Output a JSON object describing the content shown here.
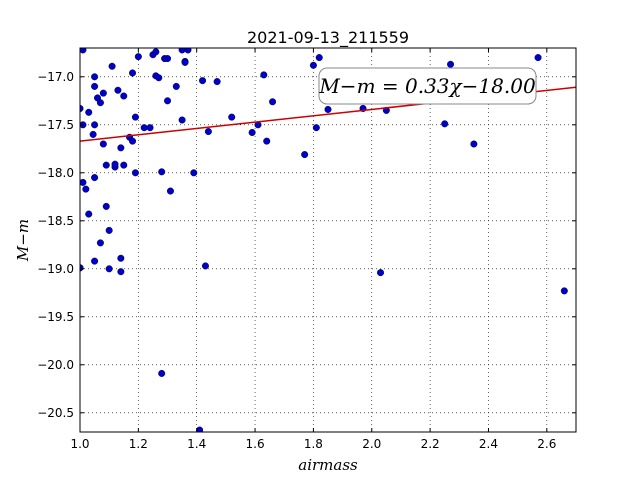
{
  "chart_data": {
    "type": "scatter",
    "title": "2021-09-13_211559",
    "xlabel": "airmass",
    "ylabel": "M−m",
    "xlim": [
      1.0,
      2.7
    ],
    "ylim": [
      -20.7,
      -16.7
    ],
    "x_ticks": [
      1.0,
      1.2,
      1.4,
      1.6,
      1.8,
      2.0,
      2.2,
      2.4,
      2.6
    ],
    "x_tick_labels": [
      "1.0",
      "1.2",
      "1.4",
      "1.6",
      "1.8",
      "2.0",
      "2.2",
      "2.4",
      "2.6"
    ],
    "y_ticks": [
      -17.0,
      -17.5,
      -18.0,
      -18.5,
      -19.0,
      -19.5,
      -20.0,
      -20.5
    ],
    "y_tick_labels": [
      "−17.0",
      "−17.5",
      "−18.0",
      "−18.5",
      "−19.0",
      "−19.5",
      "−20.0",
      "−20.5"
    ],
    "grid": true,
    "annotation": "M−m = 0.33χ−18.00",
    "fit_line": {
      "slope": 0.33,
      "intercept": -18.0,
      "color": "#cc0000"
    },
    "marker_color": "#0000cc",
    "series": [
      {
        "x": [
          1.0,
          1.01,
          1.03,
          1.0,
          1.01,
          1.045,
          1.05,
          1.06,
          1.07,
          1.08,
          1.08,
          1.05,
          1.05,
          1.09,
          1.11,
          1.12,
          1.13,
          1.15,
          1.14,
          1.12,
          1.17,
          1.18,
          1.19,
          1.2,
          1.22,
          1.26,
          1.27,
          1.28,
          1.29,
          1.3,
          1.33,
          1.35,
          1.35,
          1.36,
          1.36,
          1.37,
          1.42,
          1.44,
          1.47,
          1.52,
          1.59,
          1.61,
          1.63,
          1.64,
          1.66,
          1.77,
          1.8,
          1.81,
          1.82,
          1.85,
          1.96,
          1.97,
          2.05,
          2.25,
          2.27,
          2.35,
          2.57,
          1.01,
          1.02,
          1.03,
          1.05,
          1.09,
          1.1,
          1.07,
          1.05,
          1.0,
          1.1,
          1.14,
          1.14,
          1.28,
          1.31,
          1.39,
          1.43,
          2.03,
          2.66,
          1.25,
          1.41,
          1.24,
          1.26,
          1.3,
          1.18,
          1.15,
          1.19
        ],
        "y": [
          -17.33,
          -16.72,
          -17.37,
          -18.99,
          -17.5,
          -17.6,
          -17.1,
          -17.22,
          -17.27,
          -17.17,
          -17.7,
          -17.0,
          -17.5,
          -17.92,
          -16.89,
          -17.94,
          -17.14,
          -17.2,
          -17.74,
          -17.91,
          -17.63,
          -16.96,
          -17.42,
          -16.79,
          -17.53,
          -16.99,
          -17.01,
          -17.99,
          -16.81,
          -16.81,
          -17.1,
          -16.72,
          -17.45,
          -16.84,
          -16.85,
          -16.72,
          -17.04,
          -17.57,
          -17.05,
          -17.42,
          -17.58,
          -17.5,
          -16.98,
          -17.67,
          -17.26,
          -17.81,
          -16.88,
          -17.53,
          -16.8,
          -17.34,
          -16.67,
          -17.33,
          -17.35,
          -17.49,
          -16.87,
          -17.7,
          -16.8,
          -18.1,
          -18.17,
          -18.43,
          -18.05,
          -18.35,
          -18.6,
          -18.73,
          -18.92,
          -18.99,
          -19.0,
          -18.89,
          -19.03,
          -20.09,
          -18.19,
          -18.0,
          -18.97,
          -19.04,
          -19.23,
          -16.77,
          -20.68,
          -17.53,
          -16.74,
          -17.25,
          -17.67,
          -17.92,
          -18.0
        ]
      }
    ]
  }
}
